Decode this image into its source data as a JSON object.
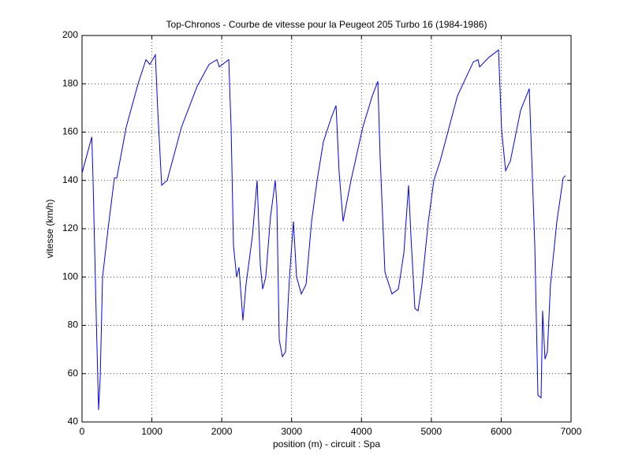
{
  "chart_data": {
    "type": "line",
    "title": "Top-Chronos - Courbe de vitesse pour la Peugeot 205 Turbo 16 (1984-1986)",
    "x_label": "position (m) - circuit : Spa",
    "y_label": "vitesse (km/h)",
    "xlim": [
      0,
      7000
    ],
    "ylim": [
      40,
      200
    ],
    "xticks": [
      0,
      1000,
      2000,
      3000,
      4000,
      5000,
      6000,
      7000
    ],
    "yticks": [
      40,
      60,
      80,
      100,
      120,
      140,
      160,
      180,
      200
    ],
    "grid": true,
    "series": [
      {
        "color": "#0000ff",
        "x": [
          0,
          140,
          158,
          203,
          237,
          260,
          294,
          373,
          463,
          497,
          632,
          802,
          915,
          971,
          1050,
          1084,
          1140,
          1219,
          1423,
          1648,
          1818,
          1931,
          1965,
          2100,
          2134,
          2168,
          2213,
          2247,
          2303,
          2348,
          2439,
          2506,
          2552,
          2586,
          2630,
          2698,
          2766,
          2789,
          2823,
          2868,
          2913,
          2970,
          3026,
          3071,
          3139,
          3207,
          3286,
          3365,
          3455,
          3568,
          3636,
          3681,
          3737,
          3850,
          4019,
          4155,
          4234,
          4268,
          4336,
          4437,
          4528,
          4607,
          4674,
          4708,
          4765,
          4810,
          4866,
          4957,
          5036,
          5126,
          5374,
          5600,
          5668,
          5691,
          5826,
          5962,
          6006,
          6063,
          6131,
          6278,
          6402,
          6481,
          6526,
          6571,
          6593,
          6627,
          6661,
          6706,
          6797,
          6887,
          6921
        ],
        "values": [
          143,
          158,
          140,
          84,
          45,
          58,
          100,
          120,
          141,
          141,
          162,
          180,
          190,
          188,
          192,
          169,
          138,
          140,
          162,
          179,
          188,
          190,
          187,
          190,
          162,
          113,
          100,
          104,
          82,
          97,
          117,
          140,
          105,
          95,
          100,
          125,
          140,
          130,
          74,
          67,
          69,
          100,
          123,
          100,
          93,
          97,
          123,
          140,
          156,
          166,
          171,
          143,
          123,
          140,
          162,
          175,
          181,
          149,
          102,
          93,
          95,
          110,
          138,
          117,
          87,
          86,
          97,
          123,
          140,
          148,
          175,
          189,
          190,
          187,
          191,
          194,
          161,
          144,
          148,
          169,
          178,
          113,
          51,
          50,
          86,
          66,
          69,
          97,
          123,
          141,
          142
        ]
      }
    ]
  }
}
